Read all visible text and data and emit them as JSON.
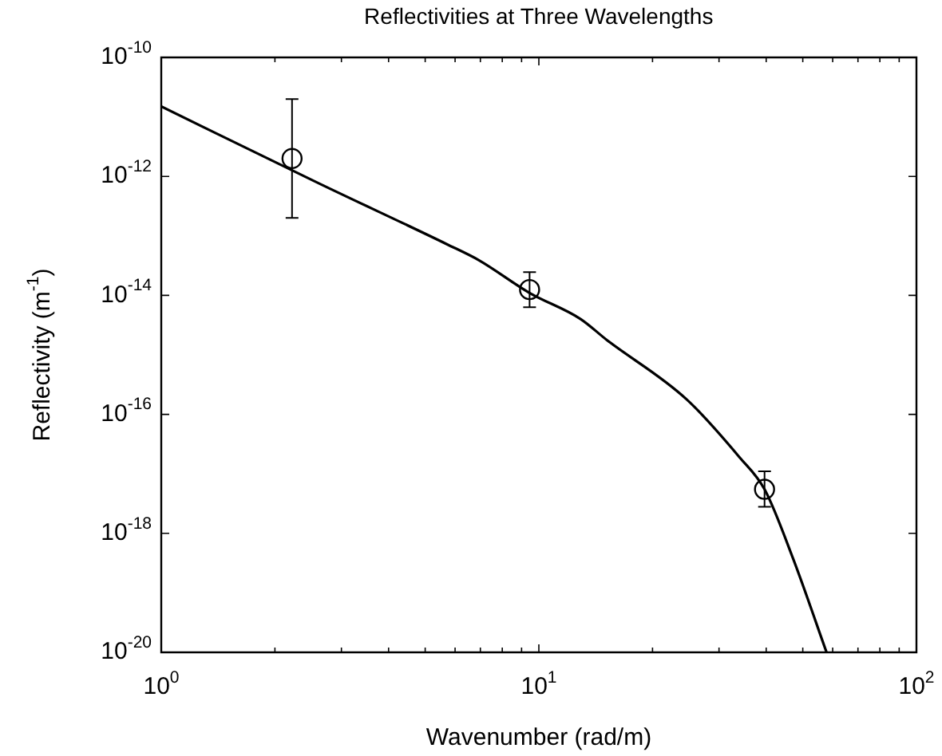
{
  "chart_data": {
    "type": "scatter",
    "title": "Reflectivities at Three Wavelengths",
    "xlabel": "Wavenumber (rad/m)",
    "ylabel": "Reflectivity (m$^{-1}$)",
    "log": "xy",
    "grid": false,
    "legend": false,
    "xlim": [
      1,
      100
    ],
    "ylim": [
      1e-20,
      1e-10
    ],
    "xticks": [
      {
        "value": 1,
        "label": "10$^{0}$"
      },
      {
        "value": 2,
        "label": null
      },
      {
        "value": 3,
        "label": null
      },
      {
        "value": 4,
        "label": null
      },
      {
        "value": 5,
        "label": null
      },
      {
        "value": 6,
        "label": null
      },
      {
        "value": 7,
        "label": null
      },
      {
        "value": 8,
        "label": null
      },
      {
        "value": 9,
        "label": null
      },
      {
        "value": 10,
        "label": "10$^{1}$"
      },
      {
        "value": 20,
        "label": null
      },
      {
        "value": 30,
        "label": null
      },
      {
        "value": 40,
        "label": null
      },
      {
        "value": 50,
        "label": null
      },
      {
        "value": 60,
        "label": null
      },
      {
        "value": 70,
        "label": null
      },
      {
        "value": 80,
        "label": null
      },
      {
        "value": 90,
        "label": null
      },
      {
        "value": 100,
        "label": "10$^{2}$"
      }
    ],
    "yticks": [
      {
        "value": 1e-10,
        "label": "10$^{-10}$"
      },
      {
        "value": 1e-12,
        "label": "10$^{-12}$"
      },
      {
        "value": 1e-14,
        "label": "10$^{-14}$"
      },
      {
        "value": 1e-16,
        "label": "10$^{-16}$"
      },
      {
        "value": 1e-18,
        "label": "10$^{-18}$"
      },
      {
        "value": 1e-20,
        "label": "10$^{-20}$"
      }
    ],
    "series": [
      {
        "marker": "circle",
        "color": "#000000",
        "x": [
          2.22,
          9.45,
          39.6
        ],
        "values": [
          2e-12,
          1.25e-14,
          5.5e-18
        ],
        "errors": [
          [
            2e-13,
            2e-11
          ],
          [
            6.3e-15,
            2.45e-14
          ],
          [
            2.8e-18,
            1.1e-17
          ]
        ]
      },
      {
        "type": "line",
        "marker": "none",
        "line_style": "solid",
        "color": "#000000",
        "x": [
          1,
          2.62,
          5.72,
          6.94,
          9.45,
          12.9,
          15.1,
          24.6,
          34,
          39.6,
          47.1,
          57.8
        ],
        "values": [
          1.5e-11,
          7.6e-13,
          7.2e-14,
          3.9e-14,
          1.1e-14,
          4e-15,
          1.8e-15,
          1.8e-16,
          1.9e-17,
          5.5e-18,
          3.8e-19,
          1e-20
        ]
      }
    ]
  }
}
